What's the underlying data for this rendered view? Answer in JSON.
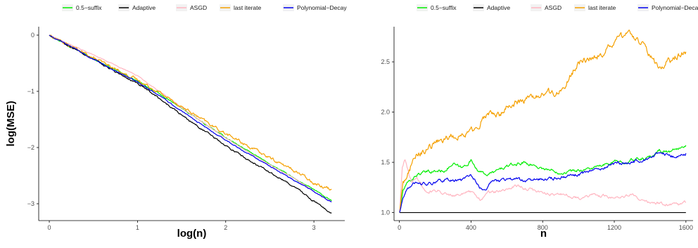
{
  "chart_data": [
    {
      "type": "line",
      "xlabel": "log(n)",
      "ylabel": "log(MSE)",
      "xlim": [
        -0.12,
        3.35
      ],
      "ylim": [
        -3.3,
        0.15
      ],
      "xticks": [
        0,
        1,
        2,
        3
      ],
      "yticks": [
        0,
        -1,
        -2,
        -3
      ],
      "xtick_labels": [
        "0",
        "1",
        "2",
        "3"
      ],
      "ytick_labels": [
        "0",
        "−1",
        "−2",
        "−3"
      ],
      "grid": false,
      "legend_position": "top",
      "series": [
        {
          "name": "0.5−suffix",
          "color": "#00ee00",
          "noise": 0.008,
          "x": [
            0,
            0.5,
            1,
            1.2,
            1.5,
            1.8,
            2.0,
            2.4,
            2.8,
            3.0,
            3.2
          ],
          "y": [
            0,
            -0.42,
            -0.82,
            -1.0,
            -1.3,
            -1.62,
            -1.82,
            -2.2,
            -2.57,
            -2.75,
            -2.95
          ]
        },
        {
          "name": "Adaptive",
          "color": "#000000",
          "noise": 0.012,
          "x": [
            0,
            0.5,
            1,
            1.2,
            1.5,
            1.8,
            2.0,
            2.4,
            2.8,
            3.0,
            3.2
          ],
          "y": [
            0,
            -0.43,
            -0.87,
            -1.07,
            -1.42,
            -1.75,
            -1.97,
            -2.35,
            -2.72,
            -2.95,
            -3.17
          ]
        },
        {
          "name": "ASGD",
          "color": "#ffb6c1",
          "noise": 0.005,
          "x": [
            0,
            0.5,
            1,
            1.2,
            1.5,
            1.8,
            2.0,
            2.4,
            2.8,
            3.0,
            3.2
          ],
          "y": [
            0,
            -0.35,
            -0.72,
            -0.95,
            -1.28,
            -1.62,
            -1.83,
            -2.22,
            -2.57,
            -2.78,
            -2.97
          ]
        },
        {
          "name": "last iterate",
          "color": "#f5a000",
          "noise": 0.02,
          "x": [
            0,
            0.5,
            1,
            1.2,
            1.5,
            1.8,
            2.0,
            2.4,
            2.8,
            3.0,
            3.2
          ],
          "y": [
            0,
            -0.41,
            -0.8,
            -0.97,
            -1.27,
            -1.57,
            -1.75,
            -2.1,
            -2.43,
            -2.62,
            -2.75
          ]
        },
        {
          "name": "Polynomial−Decay",
          "color": "#0000ee",
          "noise": 0.008,
          "x": [
            0,
            0.5,
            1,
            1.2,
            1.5,
            1.8,
            2.0,
            2.4,
            2.8,
            3.0,
            3.2
          ],
          "y": [
            0,
            -0.42,
            -0.84,
            -1.03,
            -1.35,
            -1.67,
            -1.87,
            -2.24,
            -2.6,
            -2.78,
            -2.97
          ]
        }
      ]
    },
    {
      "type": "line",
      "xlabel": "n",
      "ylabel": "",
      "xlim": [
        -30,
        1640
      ],
      "ylim": [
        0.92,
        2.85
      ],
      "xticks": [
        0,
        400,
        800,
        1200,
        1600
      ],
      "yticks": [
        1.0,
        1.5,
        2.0,
        2.5
      ],
      "xtick_labels": [
        "0",
        "400",
        "800",
        "1200",
        "1600"
      ],
      "ytick_labels": [
        "1.0",
        "1.5",
        "2.0",
        "2.5"
      ],
      "grid": false,
      "legend_position": "top",
      "series": [
        {
          "name": "0.5−suffix",
          "color": "#00ee00",
          "noise": 0.012,
          "x": [
            1,
            20,
            50,
            100,
            150,
            250,
            300,
            350,
            400,
            450,
            500,
            600,
            700,
            800,
            900,
            1000,
            1100,
            1200,
            1300,
            1400,
            1450,
            1500,
            1550,
            1600
          ],
          "y": [
            1.0,
            1.22,
            1.3,
            1.38,
            1.4,
            1.42,
            1.48,
            1.44,
            1.52,
            1.4,
            1.38,
            1.46,
            1.5,
            1.44,
            1.4,
            1.42,
            1.45,
            1.5,
            1.52,
            1.55,
            1.62,
            1.6,
            1.63,
            1.67
          ]
        },
        {
          "name": "Adaptive",
          "color": "#000000",
          "noise": 0,
          "x": [
            1,
            1600
          ],
          "y": [
            1.0,
            1.0
          ]
        },
        {
          "name": "ASGD",
          "color": "#ffb6c1",
          "noise": 0.012,
          "x": [
            1,
            15,
            30,
            50,
            70,
            100,
            150,
            200,
            300,
            400,
            450,
            500,
            600,
            650,
            700,
            800,
            900,
            1000,
            1100,
            1200,
            1300,
            1400,
            1500,
            1550,
            1600
          ],
          "y": [
            1.0,
            1.45,
            1.53,
            1.4,
            1.3,
            1.35,
            1.2,
            1.22,
            1.18,
            1.2,
            1.13,
            1.2,
            1.22,
            1.28,
            1.24,
            1.2,
            1.18,
            1.15,
            1.17,
            1.15,
            1.17,
            1.1,
            1.08,
            1.07,
            1.1
          ]
        },
        {
          "name": "last iterate",
          "color": "#f5a000",
          "noise": 0.025,
          "x": [
            1,
            20,
            60,
            100,
            150,
            200,
            300,
            400,
            500,
            550,
            600,
            700,
            800,
            900,
            1000,
            1100,
            1150,
            1200,
            1280,
            1350,
            1400,
            1450,
            1500,
            1550,
            1600
          ],
          "y": [
            1.0,
            1.3,
            1.45,
            1.58,
            1.62,
            1.7,
            1.76,
            1.8,
            2.0,
            1.95,
            2.07,
            2.12,
            2.18,
            2.2,
            2.5,
            2.55,
            2.6,
            2.7,
            2.78,
            2.7,
            2.55,
            2.42,
            2.5,
            2.55,
            2.6
          ]
        },
        {
          "name": "Polynomial−Decay",
          "color": "#0000ee",
          "noise": 0.012,
          "x": [
            1,
            20,
            50,
            100,
            150,
            250,
            350,
            400,
            450,
            480,
            500,
            600,
            700,
            800,
            900,
            1000,
            1100,
            1200,
            1300,
            1400,
            1450,
            1500,
            1550,
            1600
          ],
          "y": [
            1.0,
            1.15,
            1.25,
            1.3,
            1.28,
            1.33,
            1.32,
            1.38,
            1.25,
            1.2,
            1.3,
            1.33,
            1.32,
            1.33,
            1.35,
            1.38,
            1.43,
            1.48,
            1.5,
            1.55,
            1.6,
            1.57,
            1.55,
            1.59
          ]
        }
      ]
    }
  ]
}
